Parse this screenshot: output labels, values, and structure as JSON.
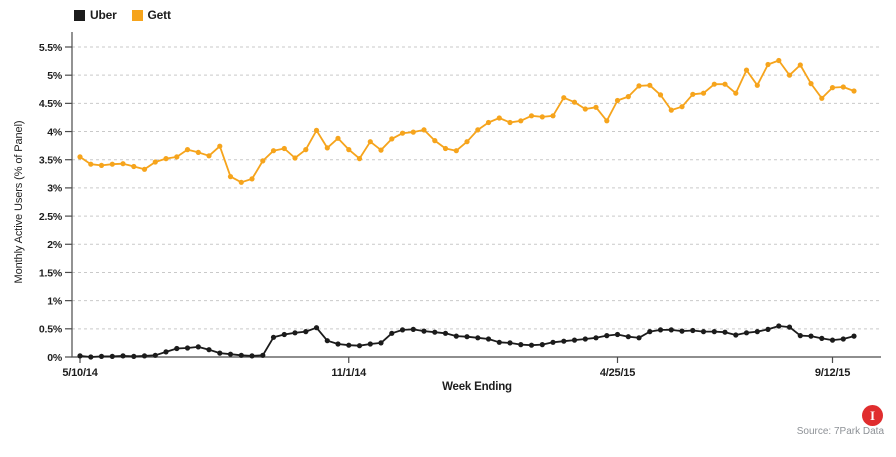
{
  "legend": {
    "items": [
      {
        "label": "Uber",
        "color": "#1b1b1b"
      },
      {
        "label": "Gett",
        "color": "#F6A41C"
      }
    ]
  },
  "footer": {
    "source_label": "Source: 7Park Data"
  },
  "icons": {
    "info_badge": {
      "glyph": "I",
      "bg": "#E02D2E"
    }
  },
  "colors": {
    "gridline": "#c9c9c9",
    "axis": "#4b4b4b",
    "tick_text": "#1d1d1d"
  },
  "chart_data": {
    "type": "line",
    "title": "",
    "xlabel": "Week Ending",
    "ylabel": "Monthly Active Users (% of Panel)",
    "ylim": [
      0,
      5.5
    ],
    "grid": "horizontal-dashed",
    "legend_position": "top-left",
    "x_unit": "weekly",
    "x_tick_labels": [
      "5/10/14",
      "11/1/14",
      "4/25/15",
      "9/12/15"
    ],
    "x_tick_indices": [
      0,
      25,
      50,
      70
    ],
    "y_tick_values": [
      0,
      0.5,
      1,
      1.5,
      2,
      2.5,
      3,
      3.5,
      4,
      4.5,
      5,
      5.5
    ],
    "y_tick_labels": [
      "0%",
      "0.5%",
      "1%",
      "1.5%",
      "2%",
      "2.5%",
      "3%",
      "3.5%",
      "4%",
      "4.5%",
      "5%",
      "5.5%"
    ],
    "series": [
      {
        "name": "Uber",
        "color": "#1b1b1b",
        "values": [
          0.02,
          0.0,
          0.01,
          0.01,
          0.02,
          0.01,
          0.02,
          0.03,
          0.09,
          0.15,
          0.16,
          0.18,
          0.13,
          0.07,
          0.05,
          0.03,
          0.02,
          0.03,
          0.35,
          0.4,
          0.43,
          0.45,
          0.52,
          0.29,
          0.23,
          0.21,
          0.2,
          0.23,
          0.25,
          0.42,
          0.48,
          0.49,
          0.46,
          0.44,
          0.42,
          0.37,
          0.36,
          0.34,
          0.32,
          0.26,
          0.25,
          0.22,
          0.21,
          0.22,
          0.26,
          0.28,
          0.3,
          0.32,
          0.34,
          0.38,
          0.4,
          0.36,
          0.34,
          0.45,
          0.48,
          0.48,
          0.46,
          0.47,
          0.45,
          0.45,
          0.44,
          0.39,
          0.43,
          0.45,
          0.49,
          0.55,
          0.53,
          0.38,
          0.37,
          0.33,
          0.3,
          0.32,
          0.37
        ]
      },
      {
        "name": "Gett",
        "color": "#F6A41C",
        "values": [
          3.55,
          3.42,
          3.4,
          3.42,
          3.43,
          3.38,
          3.33,
          3.46,
          3.52,
          3.55,
          3.68,
          3.63,
          3.57,
          3.74,
          3.2,
          3.1,
          3.16,
          3.48,
          3.66,
          3.7,
          3.53,
          3.68,
          4.02,
          3.71,
          3.88,
          3.68,
          3.52,
          3.82,
          3.67,
          3.87,
          3.97,
          3.99,
          4.03,
          3.84,
          3.7,
          3.66,
          3.82,
          4.03,
          4.16,
          4.24,
          4.16,
          4.19,
          4.28,
          4.26,
          4.28,
          4.6,
          4.52,
          4.4,
          4.43,
          4.19,
          4.55,
          4.62,
          4.81,
          4.82,
          4.65,
          4.38,
          4.44,
          4.66,
          4.68,
          4.84,
          4.84,
          4.68,
          5.09,
          4.82,
          5.19,
          5.26,
          5.0,
          5.18,
          4.85,
          4.59,
          4.78,
          4.79,
          4.72
        ]
      }
    ]
  }
}
